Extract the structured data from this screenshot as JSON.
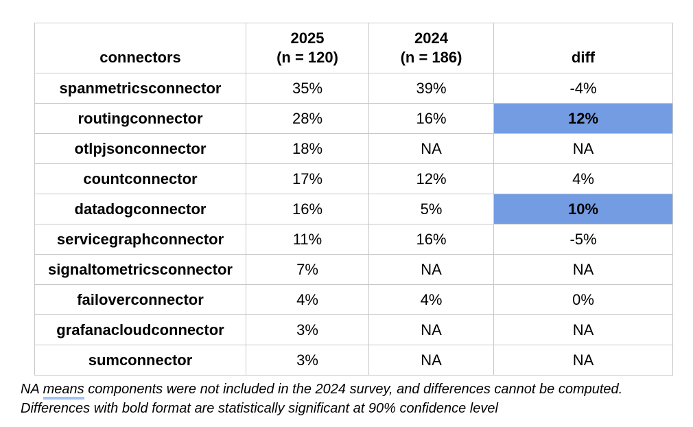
{
  "chart_data": {
    "type": "table",
    "title": "",
    "columns": [
      "connectors",
      "2025 (n = 120)",
      "2024 (n = 186)",
      "diff"
    ],
    "rows": [
      {
        "connector": "spanmetricsconnector",
        "y2025": "35%",
        "y2024": "39%",
        "diff": "-4%",
        "diff_significant": false
      },
      {
        "connector": "routingconnector",
        "y2025": "28%",
        "y2024": "16%",
        "diff": "12%",
        "diff_significant": true
      },
      {
        "connector": "otlpjsonconnector",
        "y2025": "18%",
        "y2024": "NA",
        "diff": "NA",
        "diff_significant": false
      },
      {
        "connector": "countconnector",
        "y2025": "17%",
        "y2024": "12%",
        "diff": "4%",
        "diff_significant": false
      },
      {
        "connector": "datadogconnector",
        "y2025": "16%",
        "y2024": "5%",
        "diff": "10%",
        "diff_significant": true
      },
      {
        "connector": "servicegraphconnector",
        "y2025": "11%",
        "y2024": "16%",
        "diff": "-5%",
        "diff_significant": false
      },
      {
        "connector": "signaltometricsconnector",
        "y2025": "7%",
        "y2024": "NA",
        "diff": "NA",
        "diff_significant": false
      },
      {
        "connector": "failoverconnector",
        "y2025": "4%",
        "y2024": "4%",
        "diff": "0%",
        "diff_significant": false
      },
      {
        "connector": "grafanacloudconnector",
        "y2025": "3%",
        "y2024": "NA",
        "diff": "NA",
        "diff_significant": false
      },
      {
        "connector": "sumconnector",
        "y2025": "3%",
        "y2024": "NA",
        "diff": "NA",
        "diff_significant": false
      }
    ]
  },
  "header": {
    "connectors": "connectors",
    "col2025_line1": "2025",
    "col2025_line2": "(n = 120)",
    "col2024_line1": "2024",
    "col2024_line2": "(n = 186)",
    "diff": "diff"
  },
  "footnote": {
    "line1_prefix": "NA ",
    "line1_underlined": "means",
    "line1_suffix": " components were not included in the 2024 survey, and differences cannot be computed.",
    "line2": "Differences with bold format are statistically significant at 90% confidence level"
  },
  "colors": {
    "highlight_blue": "#749ce2",
    "border_gray": "#c7c7c7",
    "underline_blue": "#a4c2f4"
  }
}
